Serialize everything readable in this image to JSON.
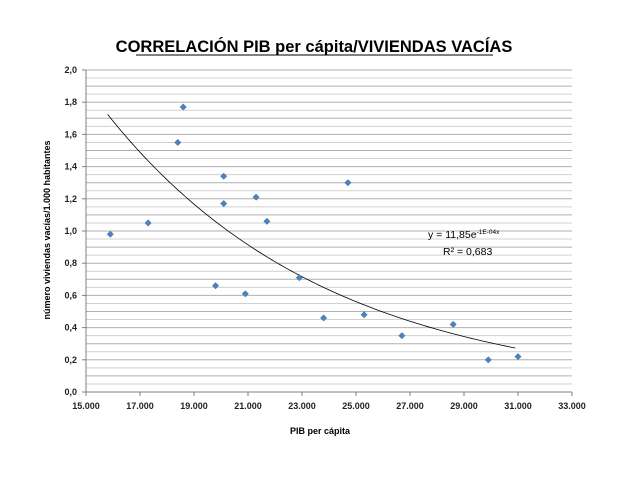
{
  "chart_data": {
    "type": "scatter",
    "title": "CORRELACIÓN PIB per cápita/VIVIENDAS VACÍAS",
    "xlabel": "PIB per cápita",
    "ylabel": "número viviendas vacías/1.000 habitantes",
    "xlim": [
      15000,
      33000
    ],
    "ylim": [
      0,
      2
    ],
    "x_ticks": [
      15000,
      17000,
      19000,
      21000,
      23000,
      25000,
      27000,
      29000,
      31000,
      33000
    ],
    "x_tick_labels": [
      "15.000",
      "17.000",
      "19.000",
      "21.000",
      "23.000",
      "25.000",
      "27.000",
      "29.000",
      "31.000",
      "33.000"
    ],
    "y_ticks": [
      0,
      0.2,
      0.4,
      0.6,
      0.8,
      1.0,
      1.2,
      1.4,
      1.6,
      1.8,
      2.0
    ],
    "y_tick_labels": [
      "0,0",
      "0,2",
      "0,4",
      "0,6",
      "0,8",
      "1,0",
      "1,2",
      "1,4",
      "1,6",
      "1,8",
      "2,0"
    ],
    "grid": true,
    "marker_color": "#4f81bd",
    "series": [
      {
        "points": [
          {
            "x": 15900,
            "y": 0.98
          },
          {
            "x": 17300,
            "y": 1.05
          },
          {
            "x": 18400,
            "y": 1.55
          },
          {
            "x": 18600,
            "y": 1.77
          },
          {
            "x": 19800,
            "y": 0.66
          },
          {
            "x": 20100,
            "y": 1.34
          },
          {
            "x": 20100,
            "y": 1.17
          },
          {
            "x": 20900,
            "y": 0.61
          },
          {
            "x": 21300,
            "y": 1.21
          },
          {
            "x": 21700,
            "y": 1.06
          },
          {
            "x": 22900,
            "y": 0.71
          },
          {
            "x": 23800,
            "y": 0.46
          },
          {
            "x": 24700,
            "y": 1.3
          },
          {
            "x": 25300,
            "y": 0.48
          },
          {
            "x": 26700,
            "y": 0.35
          },
          {
            "x": 28600,
            "y": 0.42
          },
          {
            "x": 29900,
            "y": 0.2
          },
          {
            "x": 31000,
            "y": 0.22
          }
        ]
      }
    ],
    "trendline": {
      "type": "exponential",
      "a": 11.85,
      "b": -0.000122,
      "x_range": [
        15800,
        30900
      ],
      "equation_label": "y = 11,85e",
      "equation_exponent": "-1E-04x",
      "r2_label": "R² = 0,683"
    }
  }
}
